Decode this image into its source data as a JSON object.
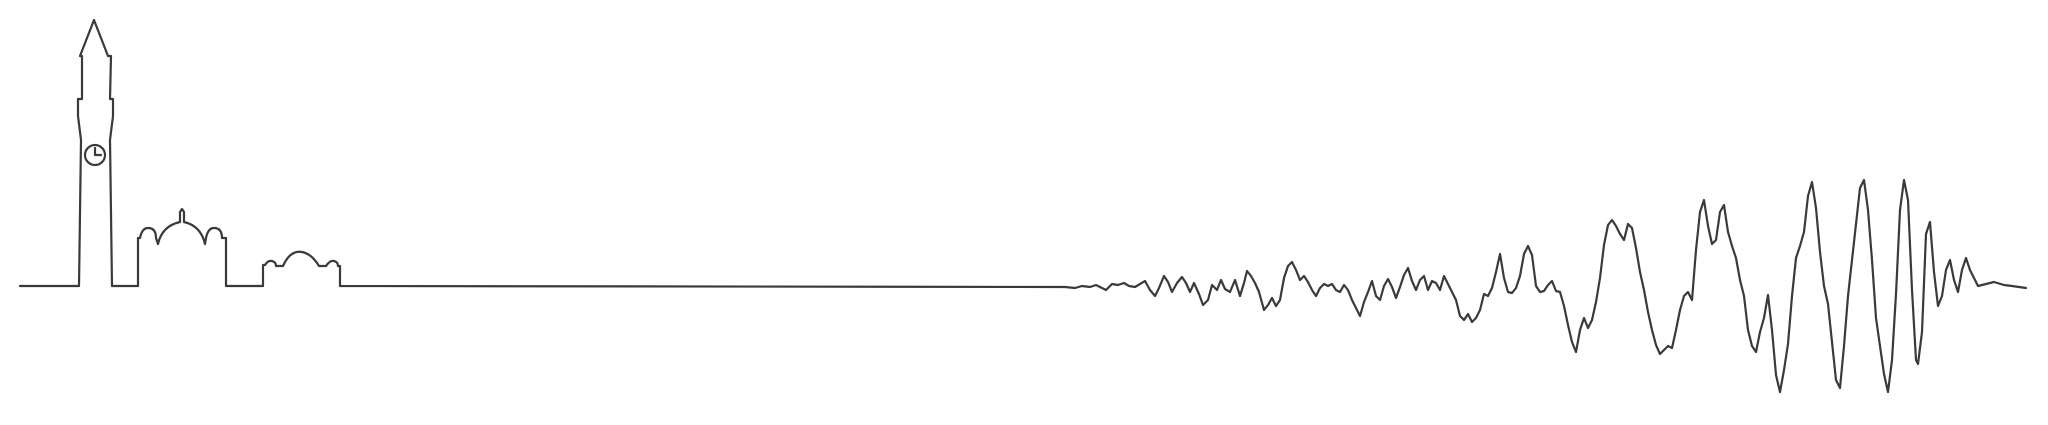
{
  "illustration": {
    "stroke_color": "#3a3a3a",
    "background_color": "#ffffff"
  }
}
